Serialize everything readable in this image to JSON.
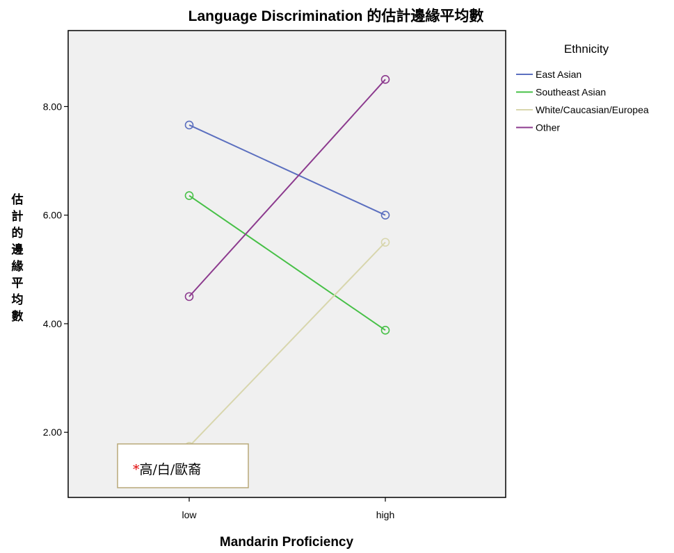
{
  "chart_data": {
    "type": "line",
    "title": "Language Discrimination 的估計邊緣平均數",
    "xlabel": "Mandarin Proficiency",
    "ylabel": "估計的邊緣平均數",
    "categories": [
      "low",
      "high"
    ],
    "ylim": [
      0.8,
      9.4
    ],
    "yticks": [
      "2.00",
      "4.00",
      "6.00",
      "8.00"
    ],
    "ytick_values": [
      2,
      4,
      6,
      8
    ],
    "grid": false,
    "legend_title": "Ethnicity",
    "legend_position": "right",
    "series": [
      {
        "name": "East Asian",
        "values": [
          7.66,
          6.0
        ],
        "color": "#5b6fbf"
      },
      {
        "name": "Southeast Asian",
        "values": [
          6.36,
          3.88
        ],
        "color": "#47c047"
      },
      {
        "name": "White/Caucasian/Europea",
        "values": [
          1.74,
          5.5
        ],
        "color": "#d8d6ad"
      },
      {
        "name": "Other",
        "values": [
          4.5,
          8.5
        ],
        "color": "#8c3a8e"
      }
    ],
    "plot_background": "#f0f0f0"
  },
  "annotation": {
    "mark": "*",
    "text": "高/白/歐裔",
    "border_color": "#b8a878"
  }
}
